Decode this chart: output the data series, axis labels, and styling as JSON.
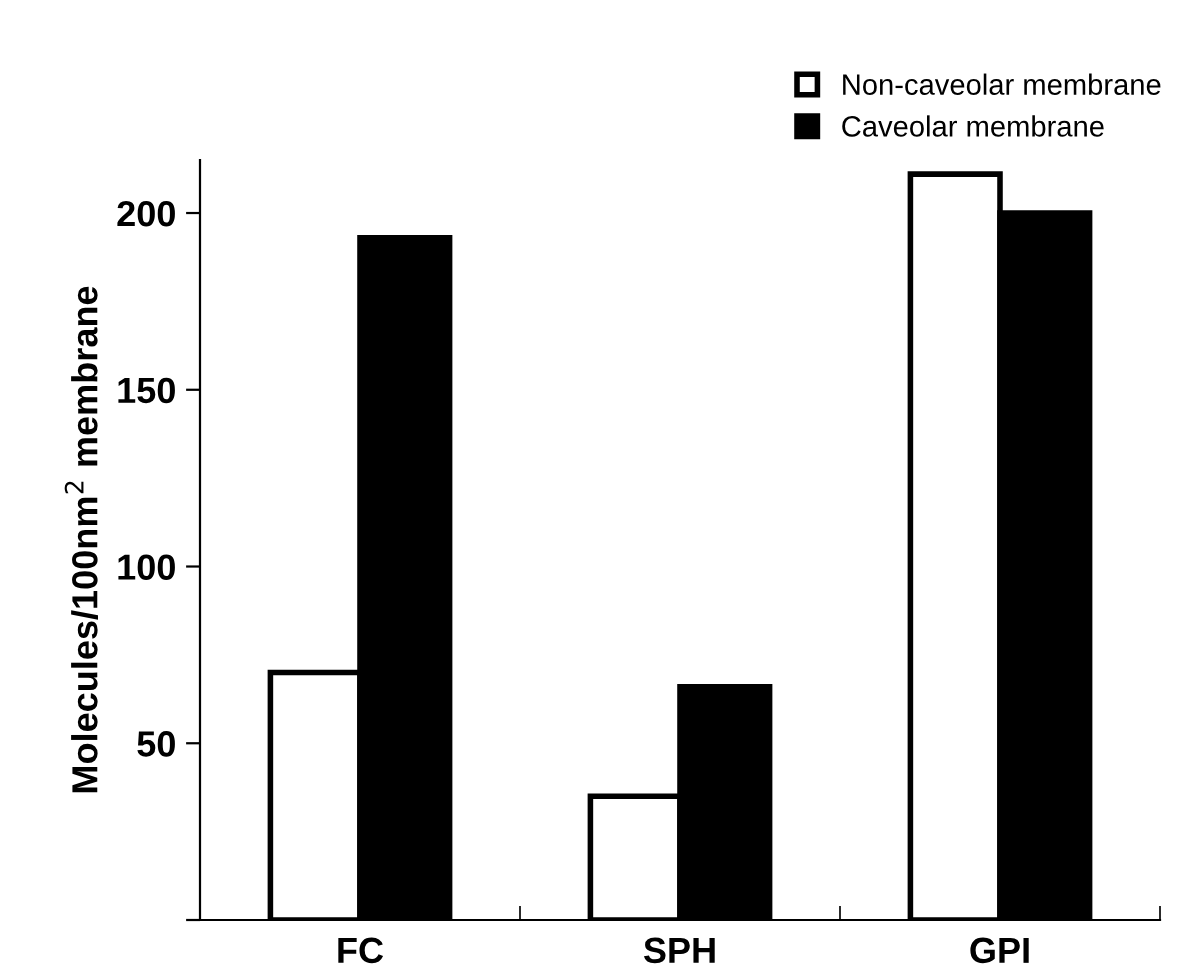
{
  "chart_data": {
    "type": "bar",
    "ylabel": "Molecules/100nm$^{2}$ membrane",
    "categories": [
      "FC",
      "SPH",
      "GPI"
    ],
    "series": [
      {
        "name": "Non-caveolar membrane",
        "color": "#ffffff",
        "values": [
          70,
          35,
          211
        ]
      },
      {
        "name": "Caveolar membrane",
        "color": "#000000",
        "values": [
          193,
          66,
          200
        ]
      }
    ],
    "ylim": [
      0,
      215
    ],
    "yticks": [
      {
        "value": 0,
        "label": null
      },
      50,
      100,
      150,
      200
    ],
    "grid": false,
    "legend": "top right"
  }
}
